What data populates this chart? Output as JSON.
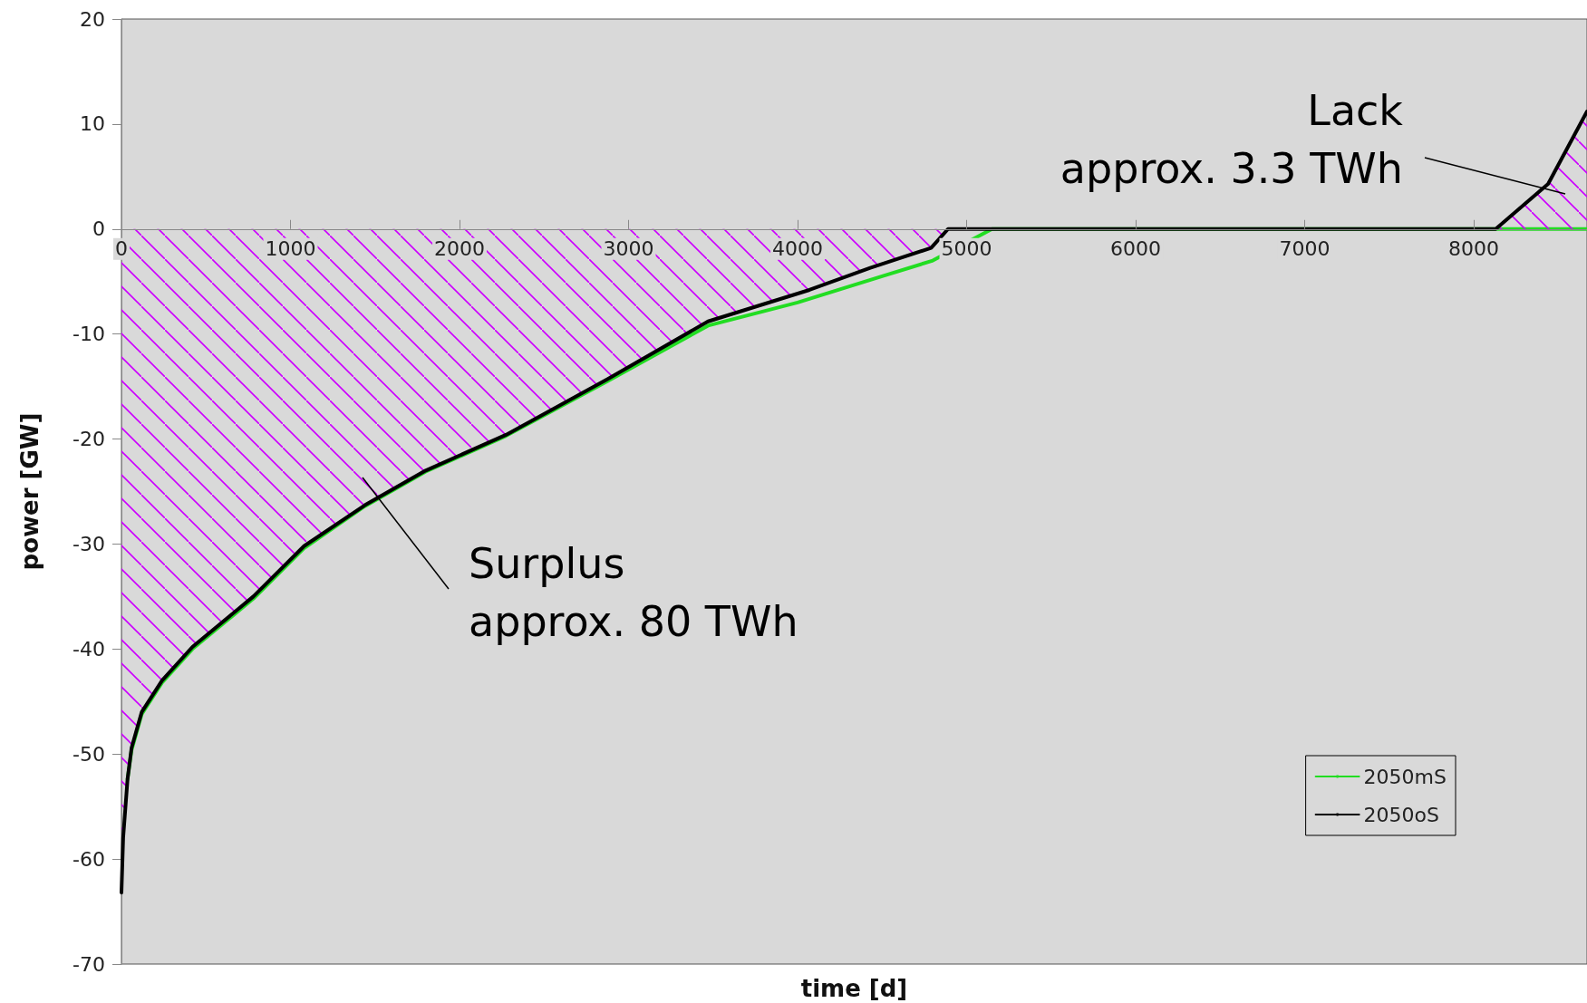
{
  "chart_data": {
    "type": "line",
    "xlabel": "time [d]",
    "ylabel": "power [GW]",
    "xlim": [
      0,
      8670
    ],
    "ylim": [
      -70,
      20
    ],
    "xticks": [
      0,
      1000,
      2000,
      3000,
      4000,
      5000,
      6000,
      7000,
      8000
    ],
    "yticks": [
      -70,
      -60,
      -50,
      -40,
      -30,
      -20,
      -10,
      0,
      10,
      20
    ],
    "grid": false,
    "legend": "bottom right",
    "marker": "none",
    "line_style": "solid",
    "series": [
      {
        "name": "2050mS",
        "color": "#22dd22",
        "x": [
          36,
          60,
          120,
          240,
          420,
          780,
          1080,
          1440,
          1800,
          2275,
          2875,
          3470,
          4000,
          4500,
          4800,
          5150,
          6000,
          7000,
          8000,
          8670
        ],
        "values": [
          -52.4,
          -49.6,
          -46.2,
          -43.2,
          -40,
          -35.2,
          -30.4,
          -26.4,
          -23.1,
          -19.7,
          -14.5,
          -9.2,
          -7,
          -4.5,
          -3,
          0,
          0,
          0,
          0,
          0
        ]
      },
      {
        "name": "2050oS",
        "type": "area",
        "color": "#000000",
        "x": [
          0,
          10,
          36,
          60,
          120,
          240,
          420,
          780,
          1080,
          1440,
          1800,
          2275,
          2875,
          3470,
          4070,
          4430,
          4790,
          4890,
          6000,
          7000,
          8000,
          8130,
          8440,
          8670
        ],
        "values": [
          -63.2,
          -58,
          -52.4,
          -49.4,
          -46,
          -43,
          -39.8,
          -35,
          -30.2,
          -26.3,
          -23,
          -19.6,
          -14.3,
          -8.8,
          -5.8,
          -3.7,
          -1.8,
          0,
          0,
          0,
          0,
          0,
          4.3,
          11.2
        ]
      }
    ],
    "annotations": [
      "Lack\napprox. 3.3 TWh",
      "Surplus\napprox. 80 TWh"
    ]
  }
}
